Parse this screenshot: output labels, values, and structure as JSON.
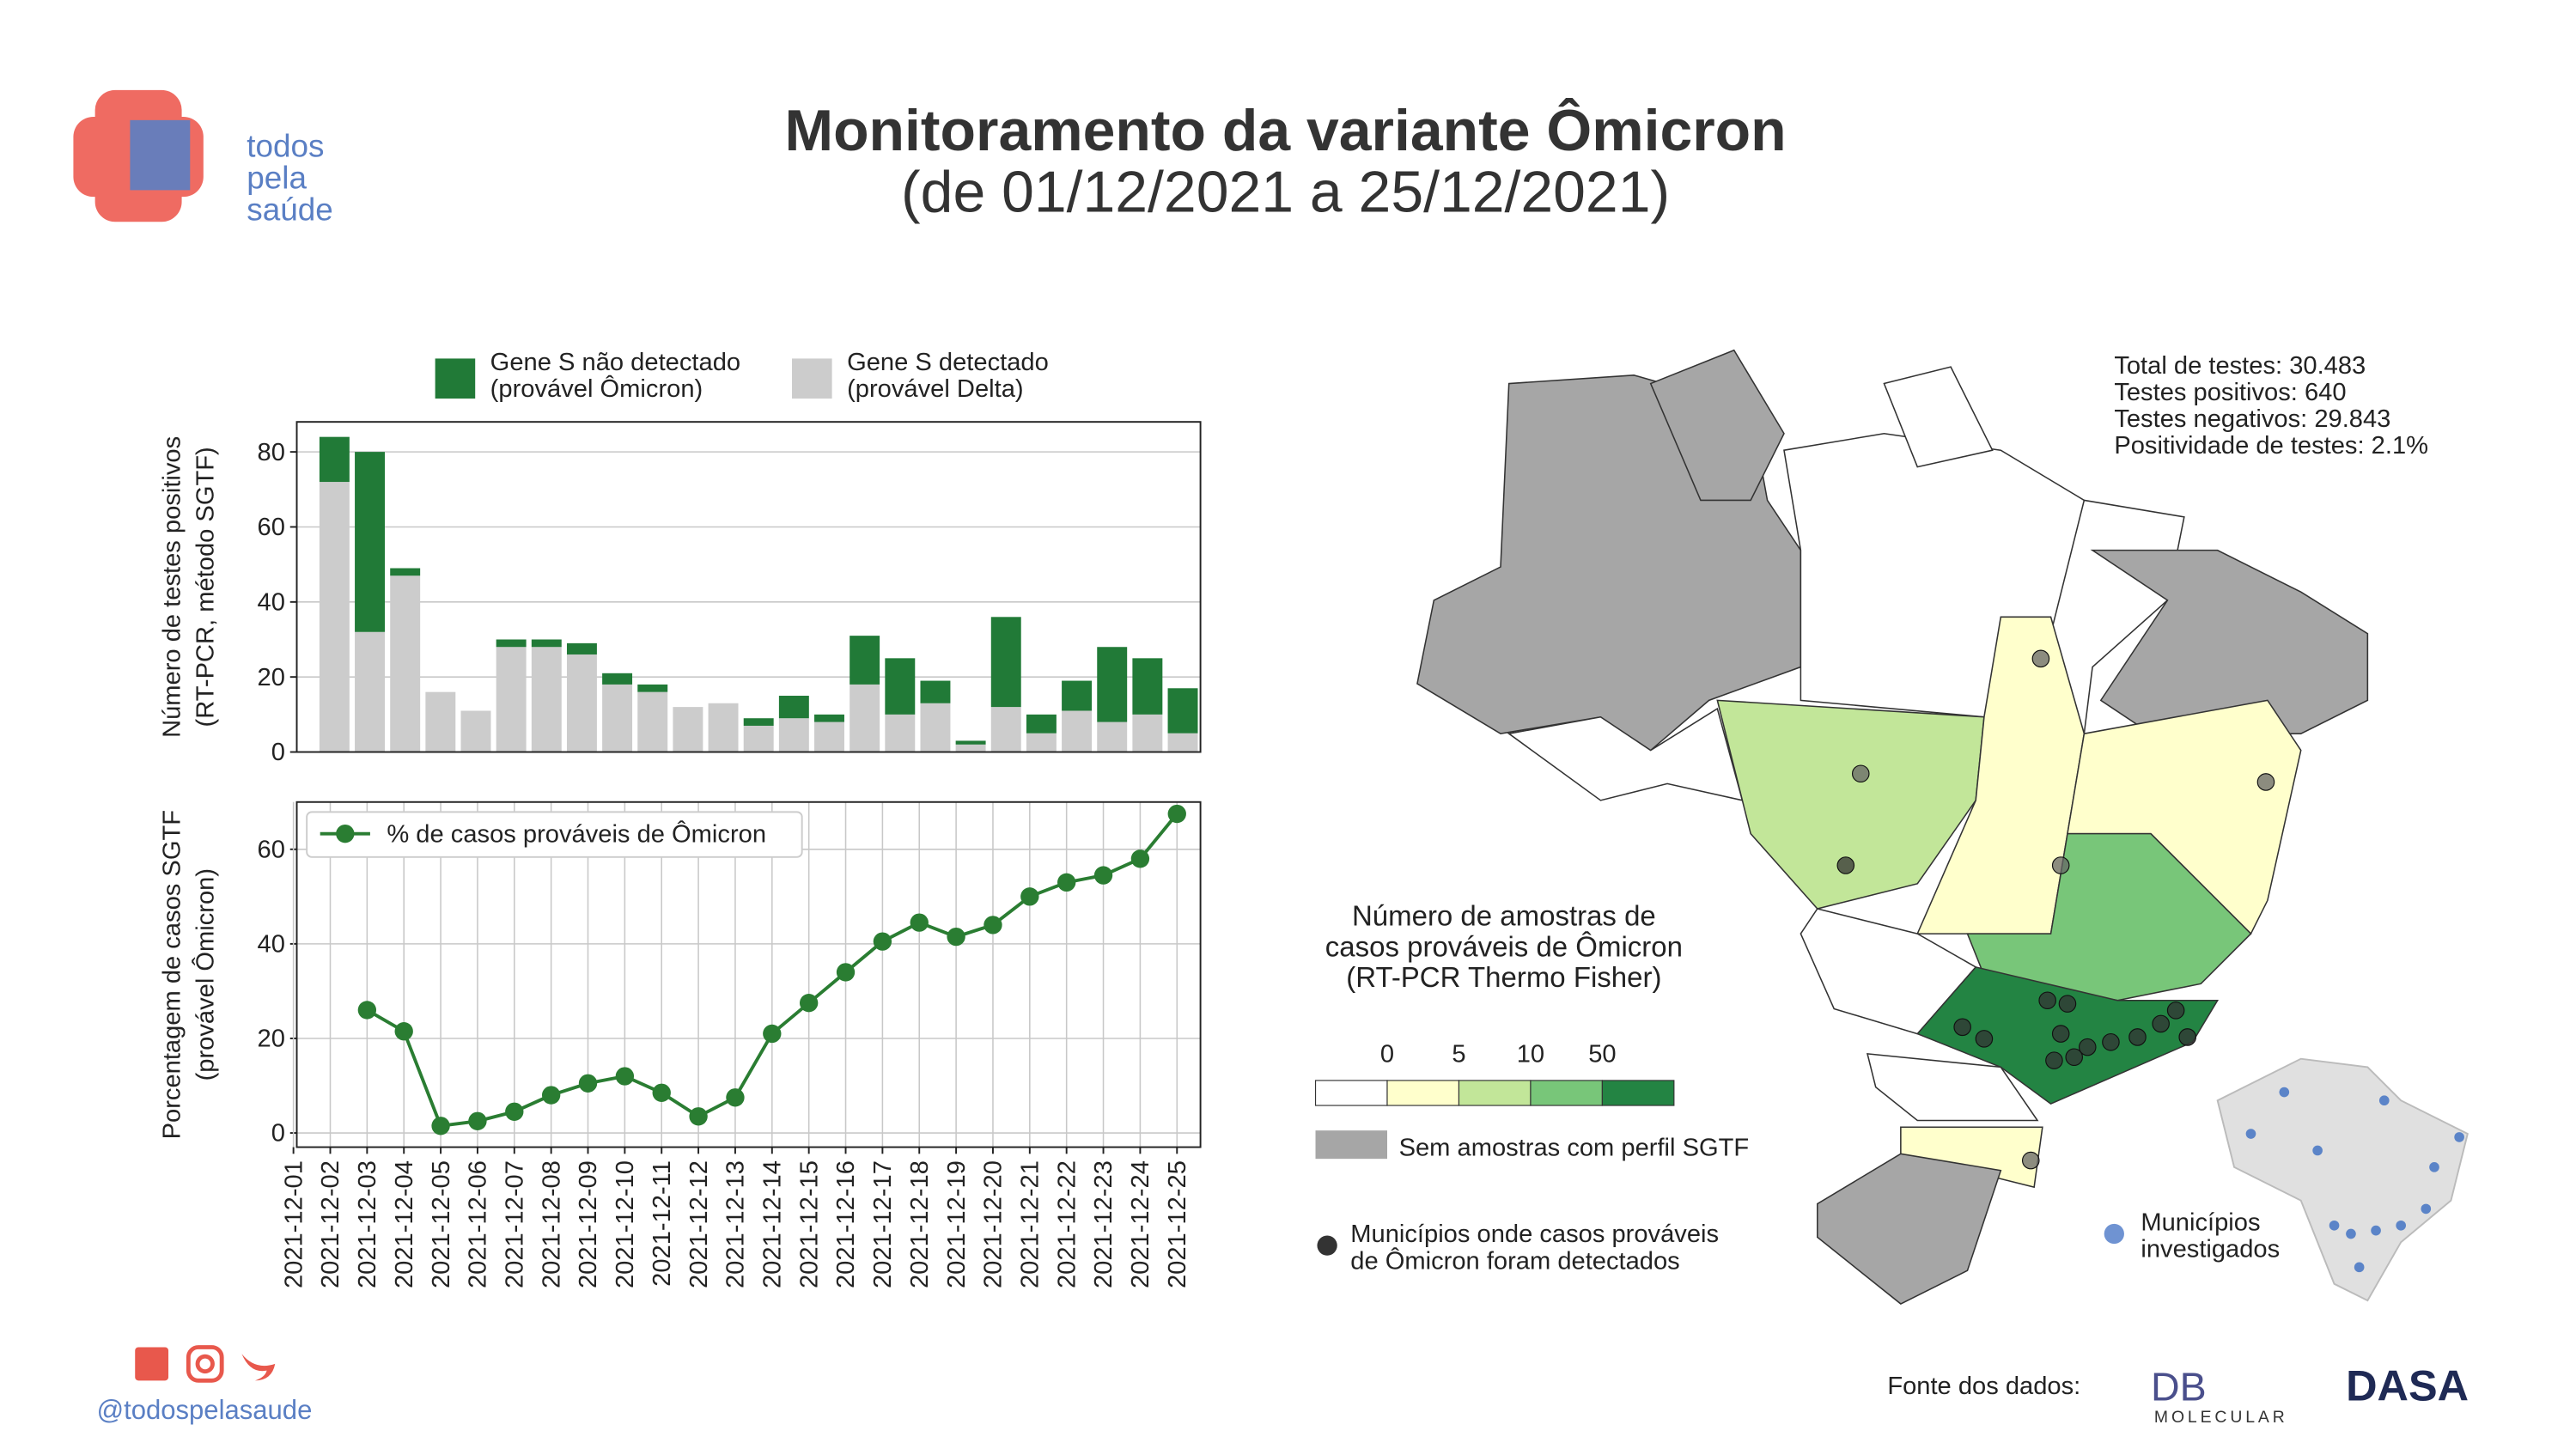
{
  "header": {
    "title": "Monitoramento da variante Ômicron",
    "subtitle": "(de 01/12/2021 a 25/12/2021)",
    "logo": [
      "todos",
      "pela",
      "saúde"
    ]
  },
  "chart_data": [
    {
      "type": "bar",
      "stacked": true,
      "ylabel": [
        "Número de testes positivos",
        "(RT-PCR, método SGTF)"
      ],
      "categories": [
        "2021-12-01",
        "2021-12-02",
        "2021-12-03",
        "2021-12-04",
        "2021-12-05",
        "2021-12-06",
        "2021-12-07",
        "2021-12-08",
        "2021-12-09",
        "2021-12-10",
        "2021-12-11",
        "2021-12-12",
        "2021-12-13",
        "2021-12-14",
        "2021-12-15",
        "2021-12-16",
        "2021-12-17",
        "2021-12-18",
        "2021-12-19",
        "2021-12-20",
        "2021-12-21",
        "2021-12-22",
        "2021-12-23",
        "2021-12-24",
        "2021-12-25"
      ],
      "series": [
        {
          "name": "Gene S não detectado (provável Ômicron)",
          "color": "#217a37",
          "values": [
            12,
            48,
            2,
            0,
            0,
            2,
            2,
            3,
            3,
            2,
            0,
            0,
            2,
            6,
            2,
            13,
            15,
            6,
            1,
            24,
            5,
            8,
            20,
            15,
            12
          ]
        },
        {
          "name": "Gene S detectado (provável Delta)",
          "color": "#cccccc",
          "values": [
            72,
            32,
            47,
            16,
            11,
            28,
            28,
            26,
            18,
            16,
            12,
            13,
            7,
            9,
            8,
            18,
            10,
            13,
            2,
            12,
            5,
            11,
            8,
            10,
            5
          ]
        }
      ],
      "ylim": [
        0,
        88
      ],
      "yticks": [
        0,
        20,
        40,
        60,
        80
      ],
      "grid": true
    },
    {
      "type": "line",
      "ylabel": [
        "Porcentagem de casos SGTF",
        "(provável Ômicron)"
      ],
      "categories": [
        "2021-12-01",
        "2021-12-02",
        "2021-12-03",
        "2021-12-04",
        "2021-12-05",
        "2021-12-06",
        "2021-12-07",
        "2021-12-08",
        "2021-12-09",
        "2021-12-10",
        "2021-12-11",
        "2021-12-12",
        "2021-12-13",
        "2021-12-14",
        "2021-12-15",
        "2021-12-16",
        "2021-12-17",
        "2021-12-18",
        "2021-12-19",
        "2021-12-20",
        "2021-12-21",
        "2021-12-22",
        "2021-12-23",
        "2021-12-24",
        "2021-12-25"
      ],
      "series": [
        {
          "name": "% de casos prováveis de Ômicron",
          "color": "#2a7d32",
          "values": [
            null,
            null,
            26,
            21.5,
            1.5,
            2.5,
            4.5,
            8,
            10.5,
            12,
            8.5,
            3.5,
            7.5,
            21,
            27.5,
            34,
            40.5,
            44.5,
            41.5,
            44,
            50,
            53,
            54.5,
            58,
            67.5
          ]
        }
      ],
      "ylim": [
        -3,
        70
      ],
      "yticks": [
        0,
        20,
        40,
        60
      ],
      "grid": true,
      "legend": "upper left"
    }
  ],
  "map": {
    "stats": [
      "Total de testes: 30.483",
      "Testes positivos: 640",
      "Testes negativos: 29.843",
      "Positividade de testes: 2.1%"
    ],
    "legend_title": [
      "Número de amostras de",
      "casos prováveis de Ômicron",
      "(RT-PCR Thermo Fisher)"
    ],
    "scale_ticks": [
      0,
      5,
      10,
      50
    ],
    "scale_colors": [
      "#ffffff",
      "#ffffcc",
      "#c2e699",
      "#78c679",
      "#238443"
    ],
    "no_samples": "Sem amostras com perfil SGTF",
    "dots_label": [
      "Municípios onde casos prováveis",
      "de Ômicron foram detectados"
    ],
    "investigated": [
      "Municípios",
      "investigados"
    ]
  },
  "footer": {
    "handle": "@todospelasaude",
    "source": "Fonte dos dados:",
    "logo1": "DB",
    "logo1_sub": "MOLECULAR",
    "logo2": "DASA"
  }
}
